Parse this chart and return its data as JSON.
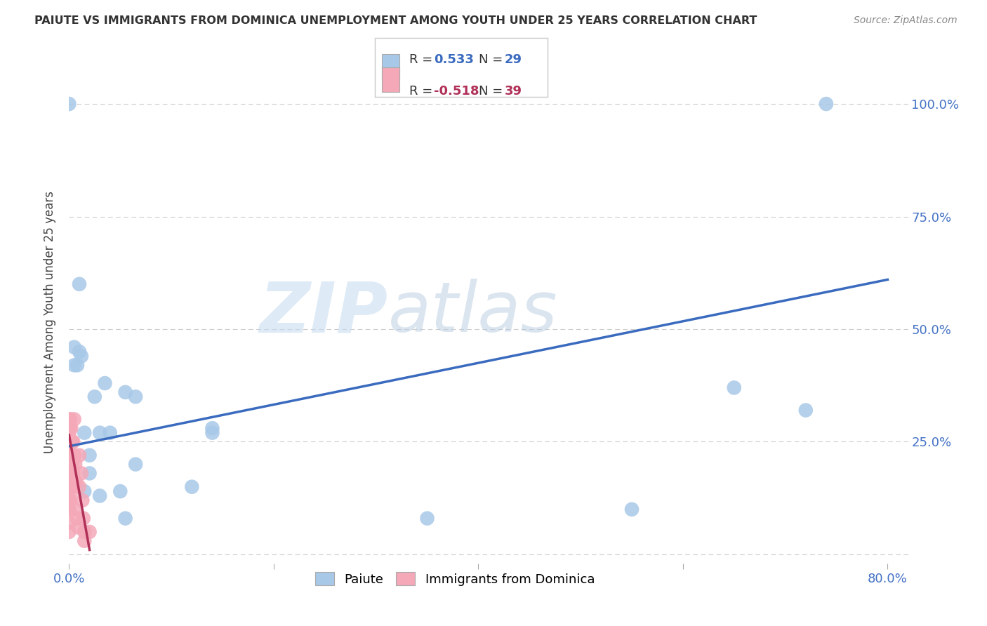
{
  "title": "PAIUTE VS IMMIGRANTS FROM DOMINICA UNEMPLOYMENT AMONG YOUTH UNDER 25 YEARS CORRELATION CHART",
  "source": "Source: ZipAtlas.com",
  "ylabel": "Unemployment Among Youth under 25 years",
  "xlabel": "",
  "xlim": [
    0,
    0.82
  ],
  "ylim": [
    -0.02,
    1.05
  ],
  "paiute_R": 0.533,
  "paiute_N": 29,
  "dominica_R": -0.518,
  "dominica_N": 39,
  "paiute_color": "#a8c8e8",
  "dominica_color": "#f4a8b8",
  "paiute_line_color": "#3a6bbf",
  "dominica_line_color": "#b03058",
  "watermark_zip": "ZIP",
  "watermark_atlas": "atlas",
  "legend_label1": "Paiute",
  "legend_label2": "Immigrants from Dominica",
  "paiute_x": [
    0.0,
    0.005,
    0.005,
    0.008,
    0.01,
    0.01,
    0.012,
    0.015,
    0.015,
    0.02,
    0.02,
    0.025,
    0.03,
    0.03,
    0.035,
    0.04,
    0.05,
    0.055,
    0.055,
    0.065,
    0.065,
    0.12,
    0.14,
    0.14,
    0.35,
    0.55,
    0.65,
    0.72,
    0.74
  ],
  "paiute_y": [
    1.0,
    0.46,
    0.42,
    0.42,
    0.6,
    0.45,
    0.44,
    0.27,
    0.14,
    0.22,
    0.18,
    0.35,
    0.27,
    0.13,
    0.38,
    0.27,
    0.14,
    0.36,
    0.08,
    0.35,
    0.2,
    0.15,
    0.28,
    0.27,
    0.08,
    0.1,
    0.37,
    0.32,
    1.0
  ],
  "dominica_x": [
    0.0,
    0.0,
    0.0,
    0.0,
    0.0,
    0.0,
    0.0,
    0.0,
    0.0,
    0.0,
    0.0,
    0.001,
    0.001,
    0.001,
    0.001,
    0.001,
    0.002,
    0.002,
    0.002,
    0.003,
    0.003,
    0.003,
    0.004,
    0.004,
    0.005,
    0.005,
    0.005,
    0.006,
    0.007,
    0.008,
    0.009,
    0.01,
    0.01,
    0.012,
    0.013,
    0.014,
    0.015,
    0.015,
    0.02
  ],
  "dominica_y": [
    0.3,
    0.28,
    0.27,
    0.22,
    0.2,
    0.18,
    0.15,
    0.12,
    0.1,
    0.07,
    0.05,
    0.3,
    0.28,
    0.22,
    0.18,
    0.12,
    0.28,
    0.22,
    0.14,
    0.25,
    0.2,
    0.15,
    0.25,
    0.18,
    0.3,
    0.22,
    0.1,
    0.2,
    0.16,
    0.08,
    0.06,
    0.22,
    0.15,
    0.18,
    0.12,
    0.08,
    0.05,
    0.03,
    0.05
  ],
  "grid_color": "#cccccc",
  "background_color": "#ffffff",
  "paiute_line_x0": 0.0,
  "paiute_line_y0": 0.24,
  "paiute_line_x1": 0.8,
  "paiute_line_y1": 0.61,
  "dominica_line_x0": 0.0,
  "dominica_line_y0": 0.265,
  "dominica_line_x1": 0.02,
  "dominica_line_y1": 0.01
}
